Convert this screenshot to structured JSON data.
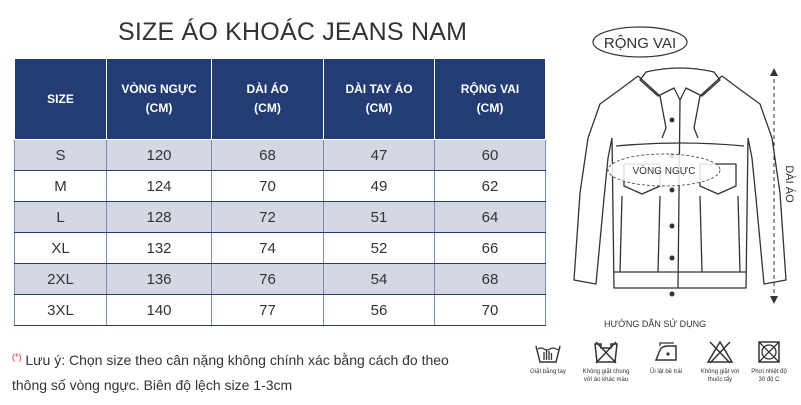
{
  "title": "SIZE ÁO KHOÁC JEANS NAM",
  "table": {
    "headers": [
      {
        "line1": "SIZE",
        "line2": ""
      },
      {
        "line1": "VÒNG NGỰC",
        "line2": "(CM)"
      },
      {
        "line1": "DÀI ÁO",
        "line2": "(CM)"
      },
      {
        "line1": "DÀI TAY ÁO",
        "line2": "(CM)"
      },
      {
        "line1": "RỘNG VAI",
        "line2": "(CM)"
      }
    ],
    "rows": [
      [
        "S",
        "120",
        "68",
        "47",
        "60"
      ],
      [
        "M",
        "124",
        "70",
        "49",
        "62"
      ],
      [
        "L",
        "128",
        "72",
        "51",
        "64"
      ],
      [
        "XL",
        "132",
        "74",
        "52",
        "66"
      ],
      [
        "2XL",
        "136",
        "76",
        "54",
        "68"
      ],
      [
        "3XL",
        "140",
        "77",
        "56",
        "70"
      ]
    ]
  },
  "note": {
    "mark": "(*)",
    "line1": "Lưu ý: Chọn size theo cân nặng không chính xác bằng cách đo theo",
    "line2": "thông số vòng ngực. Biên độ lệch size 1-3cm"
  },
  "diagram": {
    "shoulder_label": "RỘNG VAI",
    "chest_label": "VÒNG NGỰC",
    "length_label": "DÀI ÁO"
  },
  "care": {
    "title": "HƯỚNG DẪN SỬ DỤNG",
    "items": [
      {
        "icon": "hand-wash-icon",
        "label1": "Giặt bằng tay",
        "label2": ""
      },
      {
        "icon": "no-mixed-wash-icon",
        "label1": "Không giặt chung",
        "label2": "với áo khác màu"
      },
      {
        "icon": "iron-inside-out-icon",
        "label1": "Ủi lật bề trái",
        "label2": ""
      },
      {
        "icon": "no-bleach-icon",
        "label1": "Không giặt với",
        "label2": "thuốc tẩy"
      },
      {
        "icon": "shade-dry-icon",
        "label1": "Phơi nhiệt độ",
        "label2": "30 độ C"
      }
    ]
  },
  "colors": {
    "header_bg": "#233c73",
    "alt_row": "#d3d8e3",
    "note_mark": "#e0322e"
  }
}
